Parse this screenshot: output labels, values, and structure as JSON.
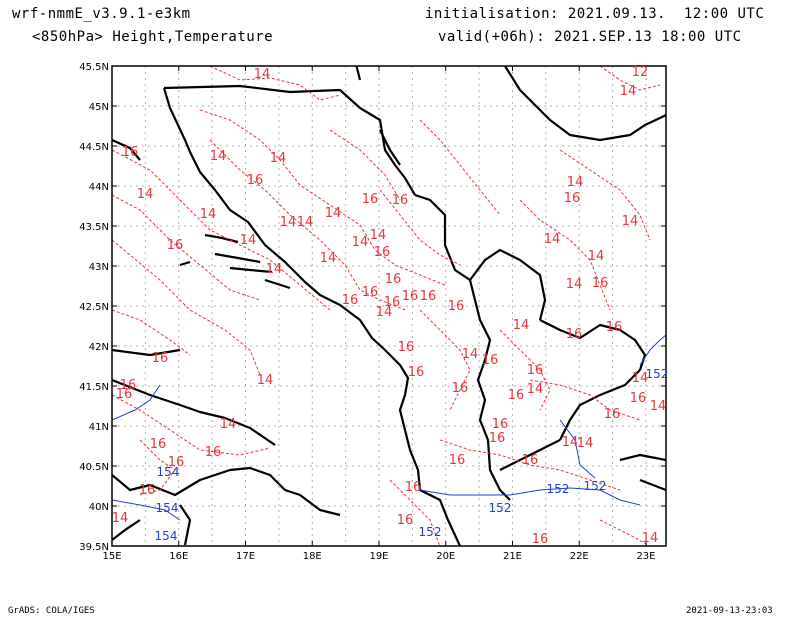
{
  "header": {
    "model": "wrf-nmmE_v3.9.1-e3km",
    "fields": "<850hPa> Height,Temperature",
    "init": "initialisation: 2021.09.13.  12:00 UTC",
    "valid": "valid(+06h): 2021.SEP.13 18:00 UTC"
  },
  "footer": {
    "credit": "GrADS: COLA/IGES",
    "timestamp": "2021-09-13-23:03"
  },
  "axes": {
    "lat_ticks": [
      "45.5N",
      "45N",
      "44.5N",
      "44N",
      "43.5N",
      "43N",
      "42.5N",
      "42N",
      "41.5N",
      "41N",
      "40.5N",
      "40N",
      "39.5N"
    ],
    "lon_ticks": [
      "15E",
      "16E",
      "17E",
      "18E",
      "19E",
      "20E",
      "21E",
      "22E",
      "23E"
    ]
  },
  "colors": {
    "temperature": "#e8353a",
    "height": "#2040d0",
    "coast": "#000000"
  },
  "temp_labels": [
    "14",
    "12",
    "14",
    "16",
    "14",
    "14",
    "16",
    "14",
    "14",
    "16",
    "14",
    "14",
    "14",
    "14",
    "16",
    "16",
    "14",
    "16",
    "14",
    "14",
    "14",
    "16",
    "14",
    "14",
    "14",
    "14",
    "16",
    "16",
    "14",
    "16",
    "16",
    "16",
    "14",
    "16",
    "16",
    "16",
    "14",
    "16",
    "16",
    "16",
    "14",
    "16",
    "16",
    "16",
    "14",
    "16",
    "16",
    "16",
    "14",
    "14",
    "16",
    "16",
    "14",
    "16",
    "14",
    "16",
    "16",
    "16",
    "16",
    "16",
    "16",
    "14",
    "14",
    "16",
    "16",
    "16",
    "16",
    "16",
    "14",
    "16",
    "14"
  ],
  "height_labels": [
    "152",
    "154",
    "154",
    "152",
    "152",
    "152",
    "152"
  ]
}
